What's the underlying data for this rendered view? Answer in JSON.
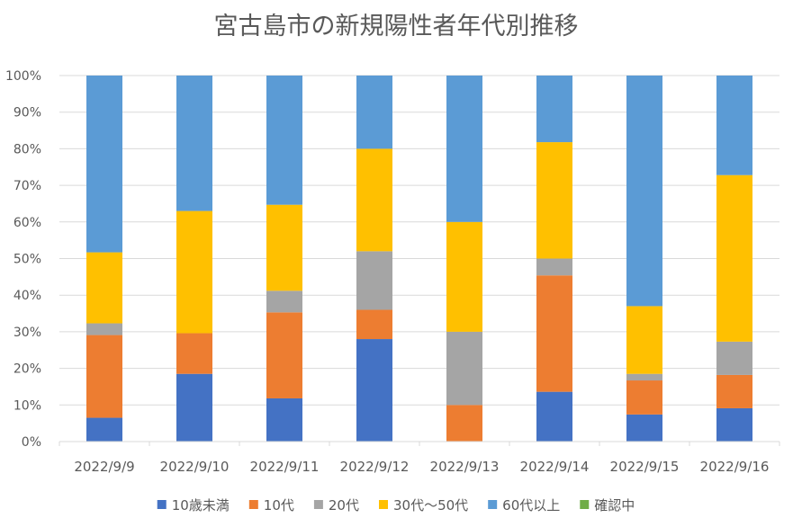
{
  "chart_data": {
    "type": "bar",
    "stacked": true,
    "percent": true,
    "title": "宮古島市の新規陽性者年代別推移",
    "xlabel": "",
    "ylabel": "",
    "ylim": [
      0,
      100
    ],
    "yticks": [
      "0%",
      "10%",
      "20%",
      "30%",
      "40%",
      "50%",
      "60%",
      "70%",
      "80%",
      "90%",
      "100%"
    ],
    "grid": true,
    "legend_position": "bottom",
    "categories": [
      "2022/9/9",
      "2022/9/10",
      "2022/9/11",
      "2022/9/12",
      "2022/9/13",
      "2022/9/14",
      "2022/9/15",
      "2022/9/16"
    ],
    "series": [
      {
        "name": "10歳未満",
        "color": "#4472c4",
        "values": [
          6.5,
          18.5,
          11.8,
          28.0,
          0.0,
          13.6,
          7.4,
          9.1
        ]
      },
      {
        "name": "10代",
        "color": "#ed7d31",
        "values": [
          22.6,
          11.1,
          23.5,
          8.0,
          10.0,
          31.8,
          9.3,
          9.1
        ]
      },
      {
        "name": "20代",
        "color": "#a5a5a5",
        "values": [
          3.2,
          0.0,
          5.9,
          16.0,
          20.0,
          4.6,
          1.8,
          9.1
        ]
      },
      {
        "name": "30代～50代",
        "color": "#ffc000",
        "values": [
          19.4,
          33.4,
          23.5,
          28.0,
          30.0,
          31.8,
          18.5,
          45.5
        ]
      },
      {
        "name": "60代以上",
        "color": "#5b9bd5",
        "values": [
          48.3,
          37.0,
          35.3,
          20.0,
          40.0,
          18.2,
          63.0,
          27.2
        ]
      },
      {
        "name": "確認中",
        "color": "#70ad47",
        "values": [
          0,
          0,
          0,
          0,
          0,
          0,
          0,
          0
        ]
      }
    ]
  }
}
